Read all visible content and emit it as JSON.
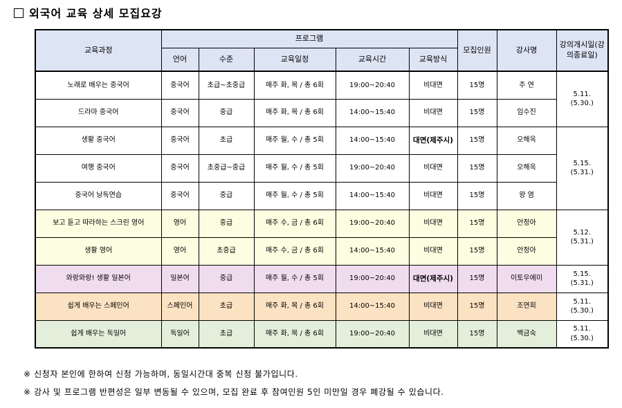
{
  "title": "외국어 교육 상세 모집요강",
  "headers": {
    "course": "교육과정",
    "program": "프로그램",
    "language": "언어",
    "level": "수준",
    "schedule": "교육일정",
    "time": "교육시간",
    "method": "교육방식",
    "recruit": "모집인원",
    "instructor": "강사명",
    "start": "강의개시일(강의종료일)"
  },
  "rows": [
    {
      "course": "노래로 배우는 중국어",
      "language": "중국어",
      "level": "초급~초중급",
      "schedule": "매주 화, 목 / 총 6회",
      "time": "19:00~20:40",
      "method": "비대면",
      "recruit": "15명",
      "instructor": "주  연"
    },
    {
      "course": "드라마 중국어",
      "language": "중국어",
      "level": "중급",
      "schedule": "매주 화, 목 / 총 6회",
      "time": "14:00~15:40",
      "method": "비대면",
      "recruit": "15명",
      "instructor": "임수진"
    },
    {
      "course": "생활 중국어",
      "language": "중국어",
      "level": "초급",
      "schedule": "매주 월, 수 / 총 5회",
      "time": "14:00~15:40",
      "method": "대면(제주시)",
      "recruit": "15명",
      "instructor": "오해옥"
    },
    {
      "course": "여행 중국어",
      "language": "중국어",
      "level": "초중급~중급",
      "schedule": "매주 월, 수 / 총 5회",
      "time": "19:00~20:40",
      "method": "비대면",
      "recruit": "15명",
      "instructor": "오해옥"
    },
    {
      "course": "중국어 낭독연습",
      "language": "중국어",
      "level": "중급",
      "schedule": "매주 월, 수 / 총 5회",
      "time": "14:00~15:40",
      "method": "비대면",
      "recruit": "15명",
      "instructor": "왕  염"
    },
    {
      "course": "보고 듣고 따라하는 스크린 영어",
      "language": "영어",
      "level": "중급",
      "schedule": "매주 수, 금 / 총 6회",
      "time": "19:00~20:40",
      "method": "비대면",
      "recruit": "15명",
      "instructor": "안정아"
    },
    {
      "course": "생활 영어",
      "language": "영어",
      "level": "초중급",
      "schedule": "매주 수, 금 / 총 6회",
      "time": "14:00~15:40",
      "method": "비대면",
      "recruit": "15명",
      "instructor": "안정아"
    },
    {
      "course": "와랑와랑! 생활 일본어",
      "language": "일본어",
      "level": "중급",
      "schedule": "매주 월, 수 / 총 5회",
      "time": "19:00~20:40",
      "method": "대면(제주시)",
      "recruit": "15명",
      "instructor": "이토우에미"
    },
    {
      "course": "쉽게 배우는 스페인어",
      "language": "스페인어",
      "level": "초급",
      "schedule": "매주 화, 목 / 총 6회",
      "time": "14:00~15:40",
      "method": "비대면",
      "recruit": "15명",
      "instructor": "조연희"
    },
    {
      "course": "쉽게 배우는 독일어",
      "language": "독일어",
      "level": "초급",
      "schedule": "매주 화, 목 / 총 6회",
      "time": "19:00~20:40",
      "method": "비대면",
      "recruit": "15명",
      "instructor": "백금숙"
    }
  ],
  "periods": [
    {
      "start": "5.11.",
      "end": "(5.30.)"
    },
    {
      "start": "5.15.",
      "end": "(5.31.)"
    },
    {
      "start": "5.12.",
      "end": "(5.31.)"
    },
    {
      "start": "5.15.",
      "end": "(5.31.)"
    },
    {
      "start": "5.11.",
      "end": "(5.30.)"
    },
    {
      "start": "5.11.",
      "end": "(5.30.)"
    }
  ],
  "notes": [
    "※ 신청자 본인에 한하여 신청 가능하며, 동일시간대 중복 신청 불가입니다.",
    "※ 강사 및 프로그램 반편성은 일부 변동될 수 있으며, 모집 완료 후 참여인원 5인 미만일 경우 폐강될 수 있습니다."
  ]
}
